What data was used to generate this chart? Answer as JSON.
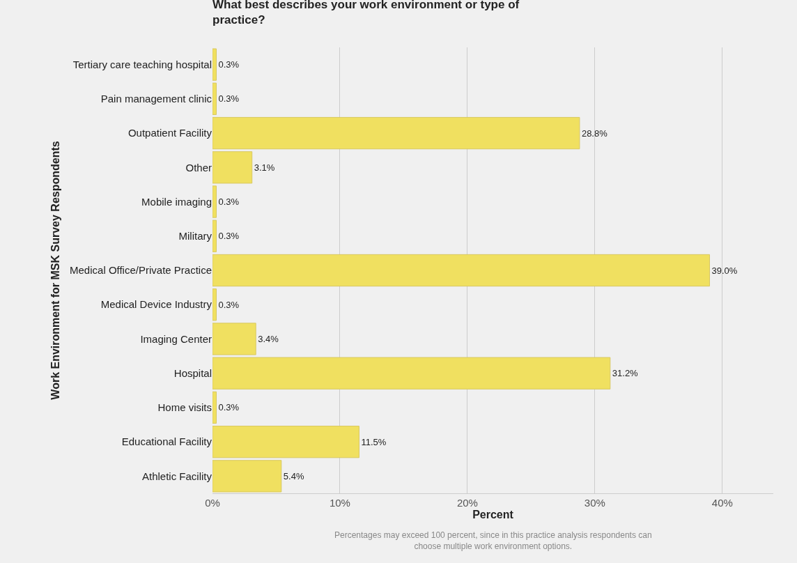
{
  "chart_data": {
    "type": "bar",
    "orientation": "horizontal",
    "title": "What best describes your work environment or type of practice?",
    "xlabel": "Percent",
    "ylabel": "Work Environment for MSK Survey Respondents",
    "categories": [
      "Tertiary care teaching hospital",
      "Pain management clinic",
      "Outpatient Facility",
      "Other",
      "Mobile imaging",
      "Military",
      "Medical Office/Private Practice",
      "Medical Device Industry",
      "Imaging Center",
      "Hospital",
      "Home visits",
      "Educational Facility",
      "Athletic Facility"
    ],
    "values": [
      0.3,
      0.3,
      28.8,
      3.1,
      0.3,
      0.3,
      39.0,
      0.3,
      3.4,
      31.2,
      0.3,
      11.5,
      5.4
    ],
    "value_labels": [
      "0.3%",
      "0.3%",
      "28.8%",
      "3.1%",
      "0.3%",
      "0.3%",
      "39.0%",
      "0.3%",
      "3.4%",
      "31.2%",
      "0.3%",
      "11.5%",
      "5.4%"
    ],
    "color": "#f0e060",
    "xlim": [
      0,
      44
    ],
    "xticks": [
      {
        "value": 0,
        "label": "0%"
      },
      {
        "value": 10,
        "label": "10%"
      },
      {
        "value": 20,
        "label": "20%"
      },
      {
        "value": 30,
        "label": "30%"
      },
      {
        "value": 40,
        "label": "40%"
      }
    ],
    "grid": "x",
    "legend": false,
    "annotations": [
      "Percentages may exceed 100 percent, since in this practice analysis respondents can choose multiple work environment options."
    ]
  }
}
